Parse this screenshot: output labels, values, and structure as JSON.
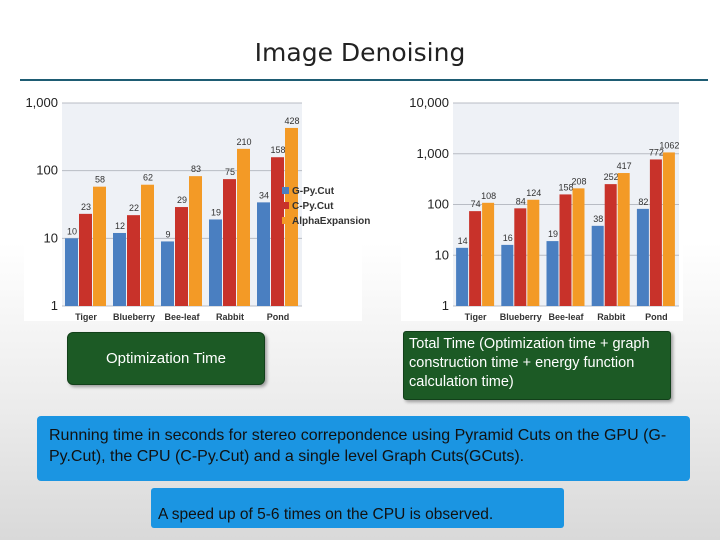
{
  "slide": {
    "title": "Image Denoising",
    "left_caption": "Optimization Time",
    "right_caption": "Total Time (Optimization time + graph construction time + energy function calculation time)",
    "info_box": "Running time in seconds for stereo correpondence using Pyramid Cuts on the GPU (G-Py.Cut), the CPU (C-Py.Cut) and a single level Graph Cuts(GCuts).",
    "speedup_box": "A speed up of 5-6 times on the CPU is observed."
  },
  "colors": {
    "G-Py.Cut": "#4a7fc1",
    "C-Py.Cut": "#c8322a",
    "AlphaExpansion": "#f39a26"
  },
  "chart_data": [
    {
      "type": "bar",
      "scale": "log",
      "ylim": [
        1,
        1000
      ],
      "yticks": [
        "1",
        "10",
        "100",
        "1,000"
      ],
      "categories": [
        "Tiger",
        "Blueberry",
        "Bee-leaf",
        "Rabbit",
        "Pond"
      ],
      "legend": "right",
      "grid": true,
      "series": [
        {
          "name": "G-Py.Cut",
          "values": [
            10,
            12,
            9,
            19,
            34
          ],
          "labels": [
            "10",
            "12",
            "9",
            "19",
            "34"
          ]
        },
        {
          "name": "C-Py.Cut",
          "values": [
            23,
            22,
            29,
            75,
            158
          ],
          "labels": [
            "23",
            "22",
            "29",
            "75",
            "158"
          ]
        },
        {
          "name": "AlphaExpansion",
          "values": [
            58,
            62,
            83,
            210,
            428
          ],
          "labels": [
            "58",
            "62",
            "83",
            "210",
            "428"
          ]
        }
      ]
    },
    {
      "type": "bar",
      "scale": "log",
      "ylim": [
        1,
        10000
      ],
      "yticks": [
        "1",
        "10",
        "100",
        "1,000",
        "10,000"
      ],
      "categories": [
        "Tiger",
        "Blueberry",
        "Bee-leaf",
        "Rabbit",
        "Pond"
      ],
      "grid": true,
      "series": [
        {
          "name": "G-Py.Cut",
          "values": [
            14,
            16,
            19,
            38,
            82
          ],
          "labels": [
            "14",
            "16",
            "19",
            "38",
            "82"
          ]
        },
        {
          "name": "C-Py.Cut",
          "values": [
            74,
            84,
            158,
            252,
            772
          ],
          "labels": [
            "74",
            "84",
            "158",
            "252",
            "772"
          ]
        },
        {
          "name": "AlphaExpansion",
          "values": [
            108,
            124,
            208,
            417,
            1062
          ],
          "labels": [
            "108",
            "124",
            "208",
            "417",
            "1062"
          ]
        }
      ]
    }
  ]
}
